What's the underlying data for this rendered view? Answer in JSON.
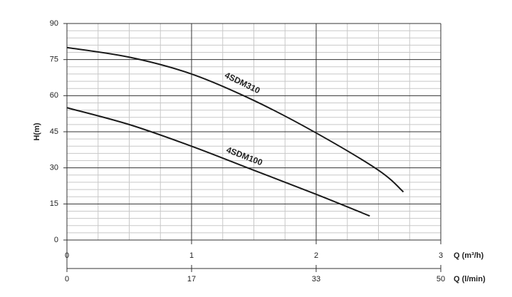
{
  "chart_data": {
    "type": "line",
    "y_label": "H(m)",
    "x_label": "Q (m³/h)",
    "x2_label": "Q (l/min)",
    "xlim": [
      0,
      3
    ],
    "xticks": [
      0,
      1,
      2,
      3
    ],
    "x2lim": [
      0,
      50
    ],
    "x2ticks": [
      0,
      {
        "value": 16.67,
        "label": "17"
      },
      {
        "value": 33.33,
        "label": "33"
      },
      50
    ],
    "ylim": [
      0,
      90
    ],
    "yticks": [
      0,
      15,
      30,
      45,
      60,
      75,
      90
    ],
    "grid": true,
    "series": [
      {
        "name": "4SDM310",
        "color": "#1a1a1a",
        "x": [
          0,
          0.5,
          1,
          1.5,
          2,
          2.5,
          2.7
        ],
        "values": [
          80,
          76,
          69,
          58,
          44.5,
          29,
          20
        ]
      },
      {
        "name": "4SDM100",
        "color": "#1a1a1a",
        "x": [
          0,
          0.5,
          1,
          1.5,
          2,
          2.43
        ],
        "values": [
          55,
          48,
          39,
          29,
          19,
          10
        ]
      }
    ]
  }
}
